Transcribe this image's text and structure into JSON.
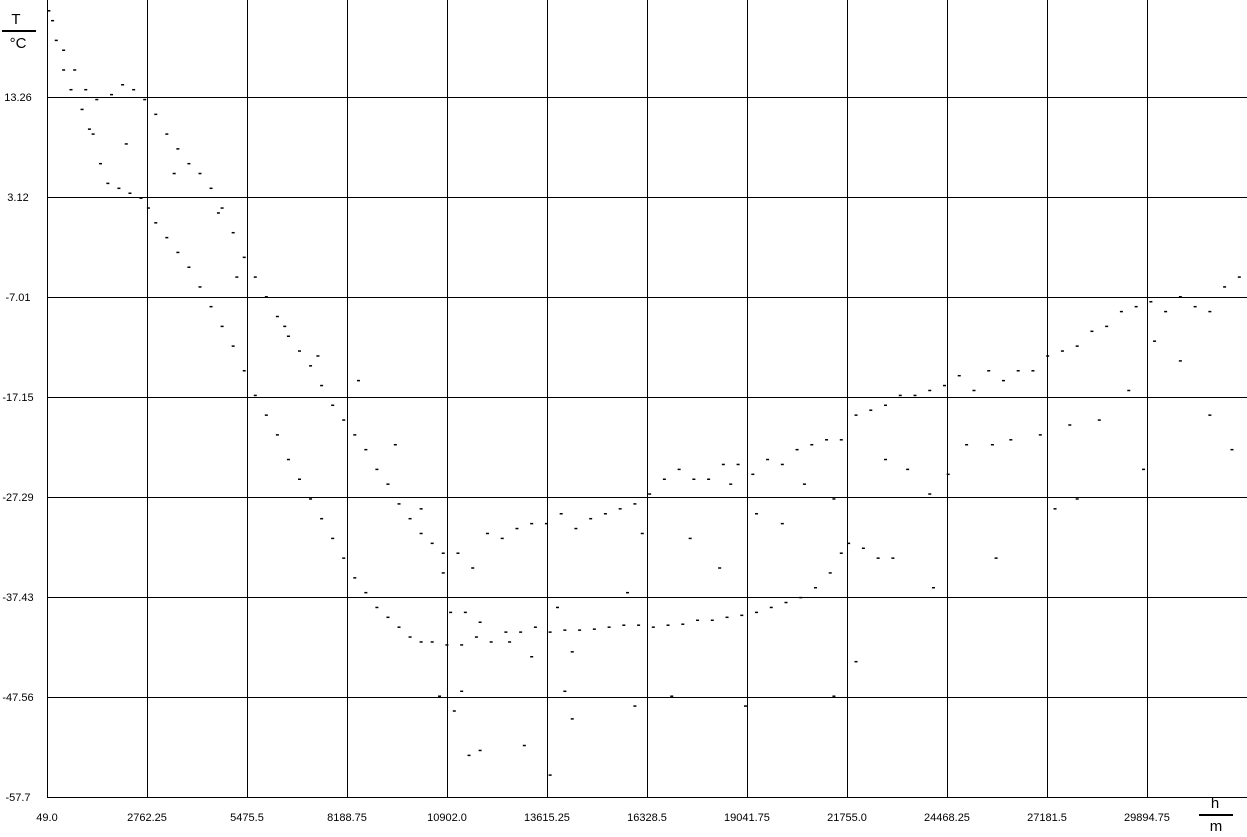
{
  "chart_data": {
    "type": "scatter",
    "title": "",
    "xlabel": {
      "symbol": "h",
      "unit": "m"
    },
    "ylabel": {
      "symbol": "T",
      "unit": "°C"
    },
    "xlim": [
      49.0,
      32608.0
    ],
    "ylim": [
      -57.7,
      23.4
    ],
    "x_ticks": [
      "49.0",
      "2762.25",
      "5475.5",
      "8188.75",
      "10902.0",
      "13615.25",
      "16328.5",
      "19041.75",
      "21755.0",
      "24468.25",
      "27181.5",
      "29894.75"
    ],
    "x_tick_values": [
      49.0,
      2762.25,
      5475.5,
      8188.75,
      10902.0,
      13615.25,
      16328.5,
      19041.75,
      21755.0,
      24468.25,
      27181.5,
      29894.75
    ],
    "y_ticks": [
      "13.26",
      "3.12",
      "-7.01",
      "-17.15",
      "-27.29",
      "-37.43",
      "-47.56",
      "-57.7"
    ],
    "y_tick_values": [
      13.26,
      3.12,
      -7.01,
      -17.15,
      -27.29,
      -37.43,
      -47.56,
      -57.7
    ],
    "grid": true,
    "legend": "none",
    "series": [
      {
        "values_note": "",
        "points": [
          [
            100,
            22.0
          ],
          [
            300,
            19.0
          ],
          [
            500,
            16.0
          ],
          [
            700,
            14.0
          ],
          [
            1000,
            12.0
          ],
          [
            1300,
            9.5
          ],
          [
            1500,
            6.5
          ],
          [
            1700,
            4.5
          ],
          [
            2000,
            4.0
          ],
          [
            2300,
            3.5
          ],
          [
            2600,
            3.0
          ],
          [
            2800,
            2.0
          ],
          [
            3000,
            0.5
          ],
          [
            3300,
            -1.0
          ],
          [
            3600,
            -2.5
          ],
          [
            3900,
            -4.0
          ],
          [
            4200,
            -6.0
          ],
          [
            4500,
            -8.0
          ],
          [
            4800,
            -10.0
          ],
          [
            5100,
            -12.0
          ],
          [
            5400,
            -14.5
          ],
          [
            5700,
            -17.0
          ],
          [
            6000,
            -19.0
          ],
          [
            6300,
            -21.0
          ],
          [
            6600,
            -23.5
          ],
          [
            6900,
            -25.5
          ],
          [
            7200,
            -27.5
          ],
          [
            7500,
            -29.5
          ],
          [
            7800,
            -31.5
          ],
          [
            8100,
            -33.5
          ],
          [
            8400,
            -35.5
          ],
          [
            8700,
            -37.0
          ],
          [
            9000,
            -38.5
          ],
          [
            9300,
            -39.5
          ],
          [
            9600,
            -40.5
          ],
          [
            9900,
            -41.5
          ],
          [
            10200,
            -42.0
          ],
          [
            10500,
            -42.0
          ],
          [
            10900,
            -42.3
          ],
          [
            11300,
            -42.3
          ],
          [
            11700,
            -41.5
          ],
          [
            12100,
            -42.0
          ],
          [
            12500,
            -41.0
          ],
          [
            12900,
            -41.0
          ],
          [
            13300,
            -40.5
          ],
          [
            13700,
            -41.0
          ],
          [
            14100,
            -40.8
          ],
          [
            14500,
            -40.8
          ],
          [
            14900,
            -40.7
          ],
          [
            15300,
            -40.5
          ],
          [
            15700,
            -40.3
          ],
          [
            16100,
            -40.3
          ],
          [
            16500,
            -40.5
          ],
          [
            16900,
            -40.3
          ],
          [
            17300,
            -40.2
          ],
          [
            17700,
            -39.8
          ],
          [
            18100,
            -39.8
          ],
          [
            18500,
            -39.5
          ],
          [
            18900,
            -39.3
          ],
          [
            19300,
            -39.0
          ],
          [
            19700,
            -38.5
          ],
          [
            20100,
            -38.0
          ],
          [
            20500,
            -37.5
          ],
          [
            20900,
            -36.5
          ],
          [
            21300,
            -35.0
          ],
          [
            21600,
            -33.0
          ],
          [
            21800,
            -32.0
          ],
          [
            22200,
            -32.5
          ],
          [
            22600,
            -33.5
          ],
          [
            23000,
            -33.5
          ],
          [
            200,
            21.0
          ],
          [
            500,
            18.0
          ],
          [
            800,
            16.0
          ],
          [
            1100,
            14.0
          ],
          [
            1400,
            13.0
          ],
          [
            1800,
            13.5
          ],
          [
            2100,
            14.5
          ],
          [
            2400,
            14.0
          ],
          [
            2700,
            13.0
          ],
          [
            3000,
            11.5
          ],
          [
            3300,
            9.5
          ],
          [
            3600,
            8.0
          ],
          [
            3900,
            6.5
          ],
          [
            4200,
            5.5
          ],
          [
            4500,
            4.0
          ],
          [
            4800,
            2.0
          ],
          [
            5100,
            -0.5
          ],
          [
            5400,
            -3.0
          ],
          [
            5700,
            -5.0
          ],
          [
            6000,
            -7.0
          ],
          [
            6300,
            -9.0
          ],
          [
            6600,
            -11.0
          ],
          [
            6900,
            -12.5
          ],
          [
            7200,
            -14.0
          ],
          [
            7500,
            -16.0
          ],
          [
            7800,
            -18.0
          ],
          [
            8100,
            -19.5
          ],
          [
            8400,
            -21.0
          ],
          [
            8700,
            -22.5
          ],
          [
            9000,
            -24.5
          ],
          [
            9300,
            -26.0
          ],
          [
            9600,
            -28.0
          ],
          [
            9900,
            -29.5
          ],
          [
            10200,
            -31.0
          ],
          [
            10500,
            -32.0
          ],
          [
            10800,
            -33.0
          ],
          [
            11200,
            -33.0
          ],
          [
            11600,
            -34.5
          ],
          [
            12000,
            -31.0
          ],
          [
            12400,
            -31.5
          ],
          [
            12800,
            -30.5
          ],
          [
            13200,
            -30.0
          ],
          [
            13600,
            -30.0
          ],
          [
            14000,
            -29.0
          ],
          [
            14400,
            -30.5
          ],
          [
            14800,
            -29.5
          ],
          [
            15200,
            -29.0
          ],
          [
            15600,
            -28.5
          ],
          [
            16000,
            -28.0
          ],
          [
            16400,
            -27.0
          ],
          [
            16800,
            -25.5
          ],
          [
            17200,
            -24.5
          ],
          [
            17600,
            -25.5
          ],
          [
            18000,
            -25.5
          ],
          [
            18400,
            -24.0
          ],
          [
            18800,
            -24.0
          ],
          [
            19200,
            -25.0
          ],
          [
            19600,
            -23.5
          ],
          [
            20000,
            -24.0
          ],
          [
            20400,
            -22.5
          ],
          [
            20800,
            -22.0
          ],
          [
            21200,
            -21.5
          ],
          [
            21600,
            -21.5
          ],
          [
            22000,
            -19.0
          ],
          [
            22400,
            -18.5
          ],
          [
            22800,
            -18.0
          ],
          [
            23200,
            -17.0
          ],
          [
            23600,
            -17.0
          ],
          [
            24000,
            -16.5
          ],
          [
            24400,
            -16.0
          ],
          [
            24800,
            -15.0
          ],
          [
            25200,
            -16.5
          ],
          [
            25600,
            -14.5
          ],
          [
            26000,
            -15.5
          ],
          [
            26400,
            -14.5
          ],
          [
            26800,
            -14.5
          ],
          [
            27200,
            -13.0
          ],
          [
            27600,
            -12.5
          ],
          [
            28000,
            -12.0
          ],
          [
            28400,
            -10.5
          ],
          [
            28800,
            -10.0
          ],
          [
            29200,
            -8.5
          ],
          [
            29600,
            -8.0
          ],
          [
            30000,
            -7.5
          ],
          [
            30400,
            -8.5
          ],
          [
            30800,
            -7.0
          ],
          [
            31200,
            -8.0
          ],
          [
            31600,
            -8.5
          ],
          [
            32000,
            -6.0
          ],
          [
            32400,
            -5.0
          ],
          [
            1200,
            10.0
          ],
          [
            2200,
            8.5
          ],
          [
            3500,
            5.5
          ],
          [
            4700,
            1.5
          ],
          [
            5200,
            -5.0
          ],
          [
            6500,
            -10.0
          ],
          [
            7400,
            -13.0
          ],
          [
            8500,
            -15.5
          ],
          [
            9500,
            -22.0
          ],
          [
            10200,
            -28.5
          ],
          [
            10800,
            -35.0
          ],
          [
            11000,
            -39.0
          ],
          [
            11400,
            -39.0
          ],
          [
            11800,
            -40.0
          ],
          [
            12600,
            -42.0
          ],
          [
            13200,
            -43.5
          ],
          [
            13900,
            -38.5
          ],
          [
            14300,
            -43.0
          ],
          [
            15800,
            -37.0
          ],
          [
            16200,
            -31.0
          ],
          [
            17500,
            -31.5
          ],
          [
            18300,
            -34.5
          ],
          [
            18600,
            -26.0
          ],
          [
            19300,
            -29.0
          ],
          [
            20000,
            -30.0
          ],
          [
            20600,
            -26.0
          ],
          [
            21400,
            -27.5
          ],
          [
            22800,
            -23.5
          ],
          [
            23400,
            -24.5
          ],
          [
            24000,
            -27.0
          ],
          [
            24500,
            -25.0
          ],
          [
            25000,
            -22.0
          ],
          [
            25700,
            -22.0
          ],
          [
            26200,
            -21.5
          ],
          [
            27000,
            -21.0
          ],
          [
            27800,
            -20.0
          ],
          [
            28600,
            -19.5
          ],
          [
            29400,
            -16.5
          ],
          [
            30100,
            -11.5
          ],
          [
            30800,
            -13.5
          ],
          [
            31600,
            -19.0
          ],
          [
            32200,
            -22.5
          ],
          [
            10700,
            -47.5
          ],
          [
            11100,
            -49.0
          ],
          [
            11300,
            -47.0
          ],
          [
            11500,
            -53.5
          ],
          [
            11800,
            -53.0
          ],
          [
            13000,
            -52.5
          ],
          [
            13700,
            -55.5
          ],
          [
            14100,
            -47.0
          ],
          [
            14300,
            -49.8
          ],
          [
            16000,
            -48.5
          ],
          [
            17000,
            -47.5
          ],
          [
            19000,
            -48.5
          ],
          [
            21400,
            -47.5
          ],
          [
            22000,
            -44.0
          ],
          [
            24100,
            -36.5
          ],
          [
            25800,
            -33.5
          ],
          [
            27400,
            -28.5
          ],
          [
            28000,
            -27.5
          ],
          [
            29800,
            -24.5
          ]
        ]
      }
    ]
  }
}
